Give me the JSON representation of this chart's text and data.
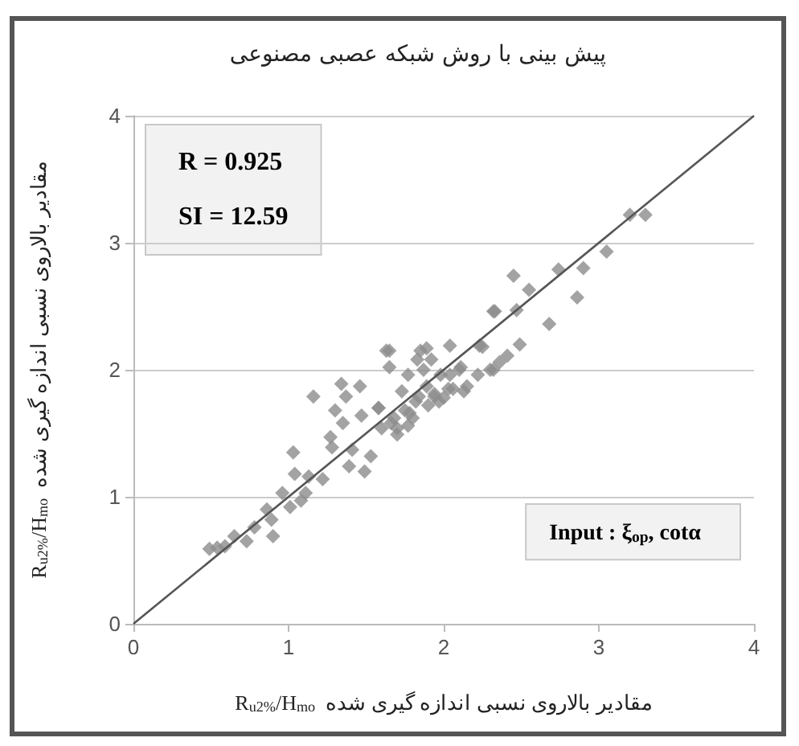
{
  "chart_data": {
    "type": "scatter",
    "title": "پیش بینی با روش شبکه عصبی مصنوعی",
    "xlabel": "R$_{u2%}$/H$_{mo}$  مقادیر بالاروی نسبی اندازه گیری شده",
    "ylabel": "R$_{u2%}$/H$_{mo}$  مقادیر بالاروی نسبی اندازه گیری شده",
    "annotations": [
      "R = 0.925",
      "SI = 12.59",
      "Input : ξ$_{op}$, cotα"
    ],
    "xlim": [
      0,
      4
    ],
    "ylim": [
      0,
      4
    ],
    "xticks": [
      0,
      1,
      2,
      3,
      4
    ],
    "yticks": [
      0,
      1,
      2,
      3,
      4
    ],
    "grid": "y",
    "series": [
      {
        "color": "#8c8c8c",
        "marker": "diamond",
        "x": [
          0.49,
          0.54,
          0.59,
          0.65,
          0.73,
          0.78,
          0.86,
          0.89,
          0.9,
          1.03,
          1.04,
          1.01,
          0.96,
          1.11,
          1.13,
          1.08,
          1.16,
          1.22,
          1.27,
          1.28,
          1.34,
          1.3,
          1.37,
          1.35,
          1.41,
          1.39,
          1.46,
          1.47,
          1.49,
          1.53,
          1.58,
          1.6,
          1.65,
          1.65,
          1.66,
          1.7,
          1.73,
          1.77,
          1.77,
          1.82,
          1.85,
          1.87,
          1.89,
          1.92,
          1.94,
          1.97,
          2.04,
          2.04,
          2.06,
          2.13,
          2.11,
          2.23,
          2.32,
          2.32,
          3.2,
          3.3,
          3.05,
          2.9,
          2.74,
          2.45,
          2.55,
          2.86,
          2.33,
          2.47,
          2.68,
          2.49,
          2.25,
          2.41,
          2.36,
          2.3,
          2.22,
          2.15,
          2.1,
          1.89,
          1.83,
          1.98,
          2.03,
          1.94,
          1.84,
          1.63,
          1.58,
          1.7,
          1.8,
          1.75,
          1.9,
          2.0,
          1.78,
          1.68
        ],
        "values": [
          0.59,
          0.6,
          0.61,
          0.69,
          0.65,
          0.76,
          0.9,
          0.82,
          0.69,
          1.35,
          1.18,
          0.92,
          1.03,
          1.03,
          1.16,
          0.97,
          1.79,
          1.14,
          1.47,
          1.39,
          1.89,
          1.68,
          1.79,
          1.58,
          1.37,
          1.24,
          1.87,
          1.64,
          1.2,
          1.32,
          1.7,
          1.54,
          2.15,
          2.02,
          1.58,
          1.49,
          1.83,
          1.96,
          1.56,
          1.75,
          2.15,
          2.0,
          1.87,
          2.08,
          1.79,
          1.75,
          2.19,
          1.96,
          1.85,
          1.83,
          2.02,
          2.19,
          2.46,
          2.0,
          3.22,
          3.22,
          2.93,
          2.8,
          2.79,
          2.74,
          2.63,
          2.57,
          2.46,
          2.47,
          2.36,
          2.2,
          2.18,
          2.11,
          2.06,
          2.0,
          1.96,
          1.87,
          2.0,
          2.17,
          2.08,
          1.96,
          1.85,
          1.81,
          1.79,
          2.15,
          1.7,
          1.54,
          1.62,
          1.68,
          1.72,
          1.78,
          1.66,
          1.62
        ]
      },
      {
        "type": "line",
        "color": "#555555",
        "marker": "none",
        "line_style": "solid",
        "x": [
          0,
          4
        ],
        "values": [
          0,
          4
        ]
      }
    ]
  }
}
